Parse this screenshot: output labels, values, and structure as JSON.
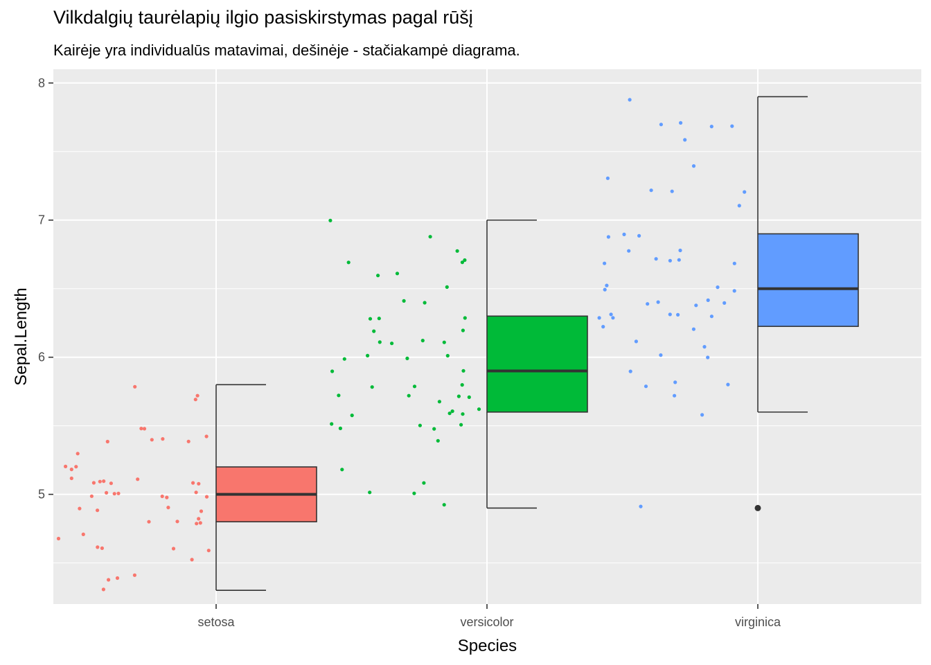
{
  "chart_data": {
    "type": "box",
    "title": "Vilkdalgių taurėlapių ilgio pasiskirstymas pagal rūšį",
    "subtitle": "Kairėje yra individualūs matavimai, dešinėje - stačiakampė diagrama.",
    "xlabel": "Species",
    "ylabel": "Sepal.Length",
    "categories": [
      "setosa",
      "versicolor",
      "virginica"
    ],
    "ylim": [
      4.2,
      8.1
    ],
    "yticks": [
      5,
      6,
      7,
      8
    ],
    "grid": true,
    "legend": "none",
    "background": "#ebebeb",
    "colors": {
      "setosa": "#f8766d",
      "versicolor": "#00ba38",
      "virginica": "#619cff"
    },
    "series": [
      {
        "name": "setosa",
        "box": {
          "min": 4.3,
          "q1": 4.8,
          "median": 5.0,
          "q3": 5.2,
          "max": 5.8,
          "outliers": []
        },
        "points": [
          5.1,
          4.9,
          4.7,
          4.6,
          5.0,
          5.4,
          4.6,
          5.0,
          4.4,
          4.9,
          5.4,
          4.8,
          4.8,
          4.3,
          5.8,
          5.7,
          5.4,
          5.1,
          5.7,
          5.1,
          5.4,
          5.1,
          4.6,
          5.1,
          4.8,
          5.0,
          5.0,
          5.2,
          5.2,
          4.7,
          4.8,
          5.4,
          5.2,
          5.5,
          4.9,
          5.0,
          5.5,
          4.9,
          4.4,
          5.1,
          5.0,
          4.5,
          4.4,
          5.0,
          5.1,
          4.8,
          5.1,
          4.6,
          5.3,
          5.0
        ]
      },
      {
        "name": "versicolor",
        "box": {
          "min": 4.9,
          "q1": 5.6,
          "median": 5.9,
          "q3": 6.3,
          "max": 7.0,
          "outliers": []
        },
        "points": [
          7.0,
          6.4,
          6.9,
          5.5,
          6.5,
          5.7,
          6.3,
          4.9,
          6.6,
          5.2,
          5.0,
          5.9,
          6.0,
          6.1,
          5.6,
          6.7,
          5.6,
          5.8,
          6.2,
          5.6,
          5.9,
          6.1,
          6.3,
          6.1,
          6.4,
          6.6,
          6.8,
          6.7,
          6.0,
          5.7,
          5.5,
          5.5,
          5.8,
          6.0,
          5.4,
          6.0,
          6.7,
          6.3,
          5.6,
          5.5,
          5.5,
          6.1,
          5.8,
          5.0,
          5.6,
          5.7,
          5.7,
          6.2,
          5.1,
          5.7
        ]
      },
      {
        "name": "virginica",
        "box": {
          "min": 5.6,
          "q1": 6.225,
          "median": 6.5,
          "q3": 6.9,
          "max": 7.9,
          "outliers": [
            4.9
          ]
        },
        "points": [
          6.3,
          5.8,
          7.1,
          6.3,
          6.5,
          7.6,
          4.9,
          7.3,
          6.7,
          7.2,
          6.5,
          6.4,
          6.8,
          5.7,
          5.8,
          6.4,
          6.5,
          7.7,
          7.7,
          6.0,
          6.9,
          5.6,
          7.7,
          6.3,
          6.7,
          7.2,
          6.2,
          6.1,
          6.4,
          7.2,
          7.4,
          7.9,
          6.4,
          6.3,
          6.1,
          7.7,
          6.3,
          6.4,
          6.0,
          6.9,
          6.7,
          6.9,
          5.8,
          6.8,
          6.7,
          6.7,
          6.3,
          6.5,
          6.2,
          5.9
        ]
      }
    ]
  }
}
